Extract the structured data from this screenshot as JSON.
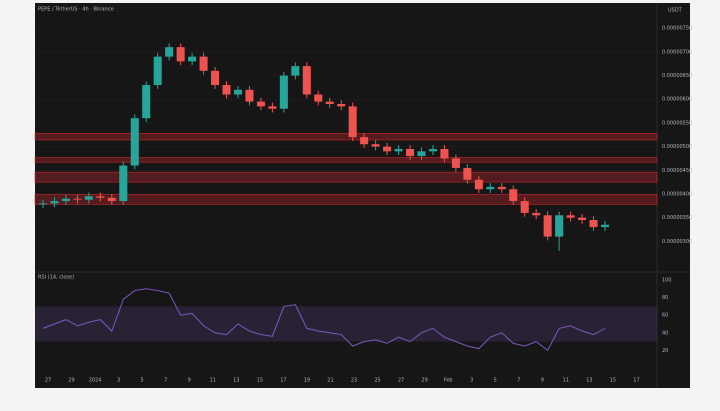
{
  "chart_data": {
    "type": "candlestick",
    "title": "PEPE / TetherUS · 4h · Binance",
    "currency": "USDT",
    "up_color": "#26a69a",
    "down_color": "#ef5350",
    "open": [
      3.78e-06,
      3.8e-06,
      3.85e-06,
      3.9e-06,
      3.88e-06,
      3.95e-06,
      3.92e-06,
      3.85e-06,
      4.6e-06,
      5.6e-06,
      6.3e-06,
      6.9e-06,
      7.1e-06,
      6.8e-06,
      6.9e-06,
      6.6e-06,
      6.3e-06,
      6.1e-06,
      6.2e-06,
      5.95e-06,
      5.85e-06,
      5.8e-06,
      6.5e-06,
      6.7e-06,
      6.1e-06,
      5.95e-06,
      5.9e-06,
      5.85e-06,
      5.2e-06,
      5.05e-06,
      5e-06,
      4.9e-06,
      4.95e-06,
      4.8e-06,
      4.9e-06,
      4.95e-06,
      4.75e-06,
      4.55e-06,
      4.3e-06,
      4.1e-06,
      4.15e-06,
      4.1e-06,
      3.85e-06,
      3.6e-06,
      3.55e-06,
      3.1e-06,
      3.55e-06,
      3.5e-06,
      3.45e-06,
      3.3e-06
    ],
    "high": [
      3.88e-06,
      3.93e-06,
      3.98e-06,
      3.98e-06,
      4.03e-06,
      4.03e-06,
      4e-06,
      4.68e-06,
      5.68e-06,
      6.38e-06,
      6.98e-06,
      7.18e-06,
      7.18e-06,
      6.98e-06,
      6.98e-06,
      6.68e-06,
      6.38e-06,
      6.28e-06,
      6.28e-06,
      6.03e-06,
      5.93e-06,
      6.58e-06,
      6.78e-06,
      6.78e-06,
      6.18e-06,
      6.03e-06,
      5.98e-06,
      5.93e-06,
      5.28e-06,
      5.13e-06,
      5.08e-06,
      5.03e-06,
      5.03e-06,
      4.98e-06,
      5.03e-06,
      5.03e-06,
      4.83e-06,
      4.63e-06,
      4.38e-06,
      4.23e-06,
      4.23e-06,
      4.18e-06,
      3.93e-06,
      3.68e-06,
      3.63e-06,
      3.63e-06,
      3.63e-06,
      3.58e-06,
      3.53e-06,
      3.43e-06
    ],
    "low": [
      3.7e-06,
      3.72e-06,
      3.77e-06,
      3.8e-06,
      3.8e-06,
      3.84e-06,
      3.77e-06,
      3.77e-06,
      4.52e-06,
      5.52e-06,
      6.22e-06,
      6.82e-06,
      6.72e-06,
      6.72e-06,
      6.52e-06,
      6.22e-06,
      6.02e-06,
      6.02e-06,
      5.87e-06,
      5.77e-06,
      5.72e-06,
      5.72e-06,
      6.42e-06,
      6.02e-06,
      5.87e-06,
      5.82e-06,
      5.77e-06,
      5.12e-06,
      4.97e-06,
      4.92e-06,
      4.82e-06,
      4.82e-06,
      4.72e-06,
      4.72e-06,
      4.82e-06,
      4.67e-06,
      4.47e-06,
      4.22e-06,
      4.02e-06,
      4.02e-06,
      4.02e-06,
      3.77e-06,
      3.52e-06,
      3.47e-06,
      3.02e-06,
      2.8e-06,
      3.42e-06,
      3.37e-06,
      3.22e-06,
      3.22e-06
    ],
    "close": [
      3.8e-06,
      3.85e-06,
      3.9e-06,
      3.88e-06,
      3.95e-06,
      3.92e-06,
      3.85e-06,
      4.6e-06,
      5.6e-06,
      6.3e-06,
      6.9e-06,
      7.1e-06,
      6.8e-06,
      6.9e-06,
      6.6e-06,
      6.3e-06,
      6.1e-06,
      6.2e-06,
      5.95e-06,
      5.85e-06,
      5.8e-06,
      6.5e-06,
      6.7e-06,
      6.1e-06,
      5.95e-06,
      5.9e-06,
      5.85e-06,
      5.2e-06,
      5.05e-06,
      5e-06,
      4.9e-06,
      4.95e-06,
      4.8e-06,
      4.9e-06,
      4.95e-06,
      4.75e-06,
      4.55e-06,
      4.3e-06,
      4.1e-06,
      4.15e-06,
      4.1e-06,
      3.85e-06,
      3.6e-06,
      3.55e-06,
      3.1e-06,
      3.55e-06,
      3.5e-06,
      3.45e-06,
      3.3e-06,
      3.35e-06
    ],
    "ylim": [
      2.5e-06,
      7.8e-06
    ],
    "yticks": [
      {
        "value": 3e-06,
        "label": "0.00000300"
      },
      {
        "value": 3.5e-06,
        "label": "0.00000350"
      },
      {
        "value": 4e-06,
        "label": "0.00000400"
      },
      {
        "value": 4.5e-06,
        "label": "0.00000450"
      },
      {
        "value": 5e-06,
        "label": "0.00000500"
      },
      {
        "value": 5.5e-06,
        "label": "0.00000550"
      },
      {
        "value": 6e-06,
        "label": "0.00000600"
      },
      {
        "value": 6.5e-06,
        "label": "0.00000650"
      },
      {
        "value": 7e-06,
        "label": "0.00000700"
      },
      {
        "value": 7.5e-06,
        "label": "0.00000750"
      }
    ],
    "zones": [
      {
        "from": 5.14e-06,
        "to": 5.28e-06
      },
      {
        "from": 4.67e-06,
        "to": 4.77e-06
      },
      {
        "from": 4.25e-06,
        "to": 4.46e-06
      },
      {
        "from": 3.78e-06,
        "to": 3.99e-06
      }
    ],
    "x_labels": [
      "27",
      "29",
      "2024",
      "3",
      "5",
      "7",
      "9",
      "11",
      "13",
      "15",
      "17",
      "19",
      "21",
      "23",
      "25",
      "27",
      "29",
      "Feb",
      "3",
      "5",
      "7",
      "9",
      "11",
      "13",
      "15",
      "17"
    ],
    "rsi": {
      "title": "RSI (14, close)",
      "color": "#7e57c2",
      "values": [
        45,
        50,
        55,
        48,
        52,
        55,
        42,
        78,
        88,
        90,
        88,
        85,
        60,
        62,
        48,
        40,
        38,
        50,
        42,
        38,
        36,
        70,
        72,
        45,
        42,
        40,
        38,
        25,
        30,
        32,
        28,
        35,
        30,
        40,
        45,
        35,
        30,
        25,
        22,
        35,
        40,
        28,
        25,
        30,
        20,
        45,
        48,
        42,
        38,
        45
      ],
      "ylim": [
        0,
        100
      ],
      "yticks": [
        20,
        40,
        60,
        80,
        100
      ],
      "band": [
        30,
        70
      ]
    }
  }
}
